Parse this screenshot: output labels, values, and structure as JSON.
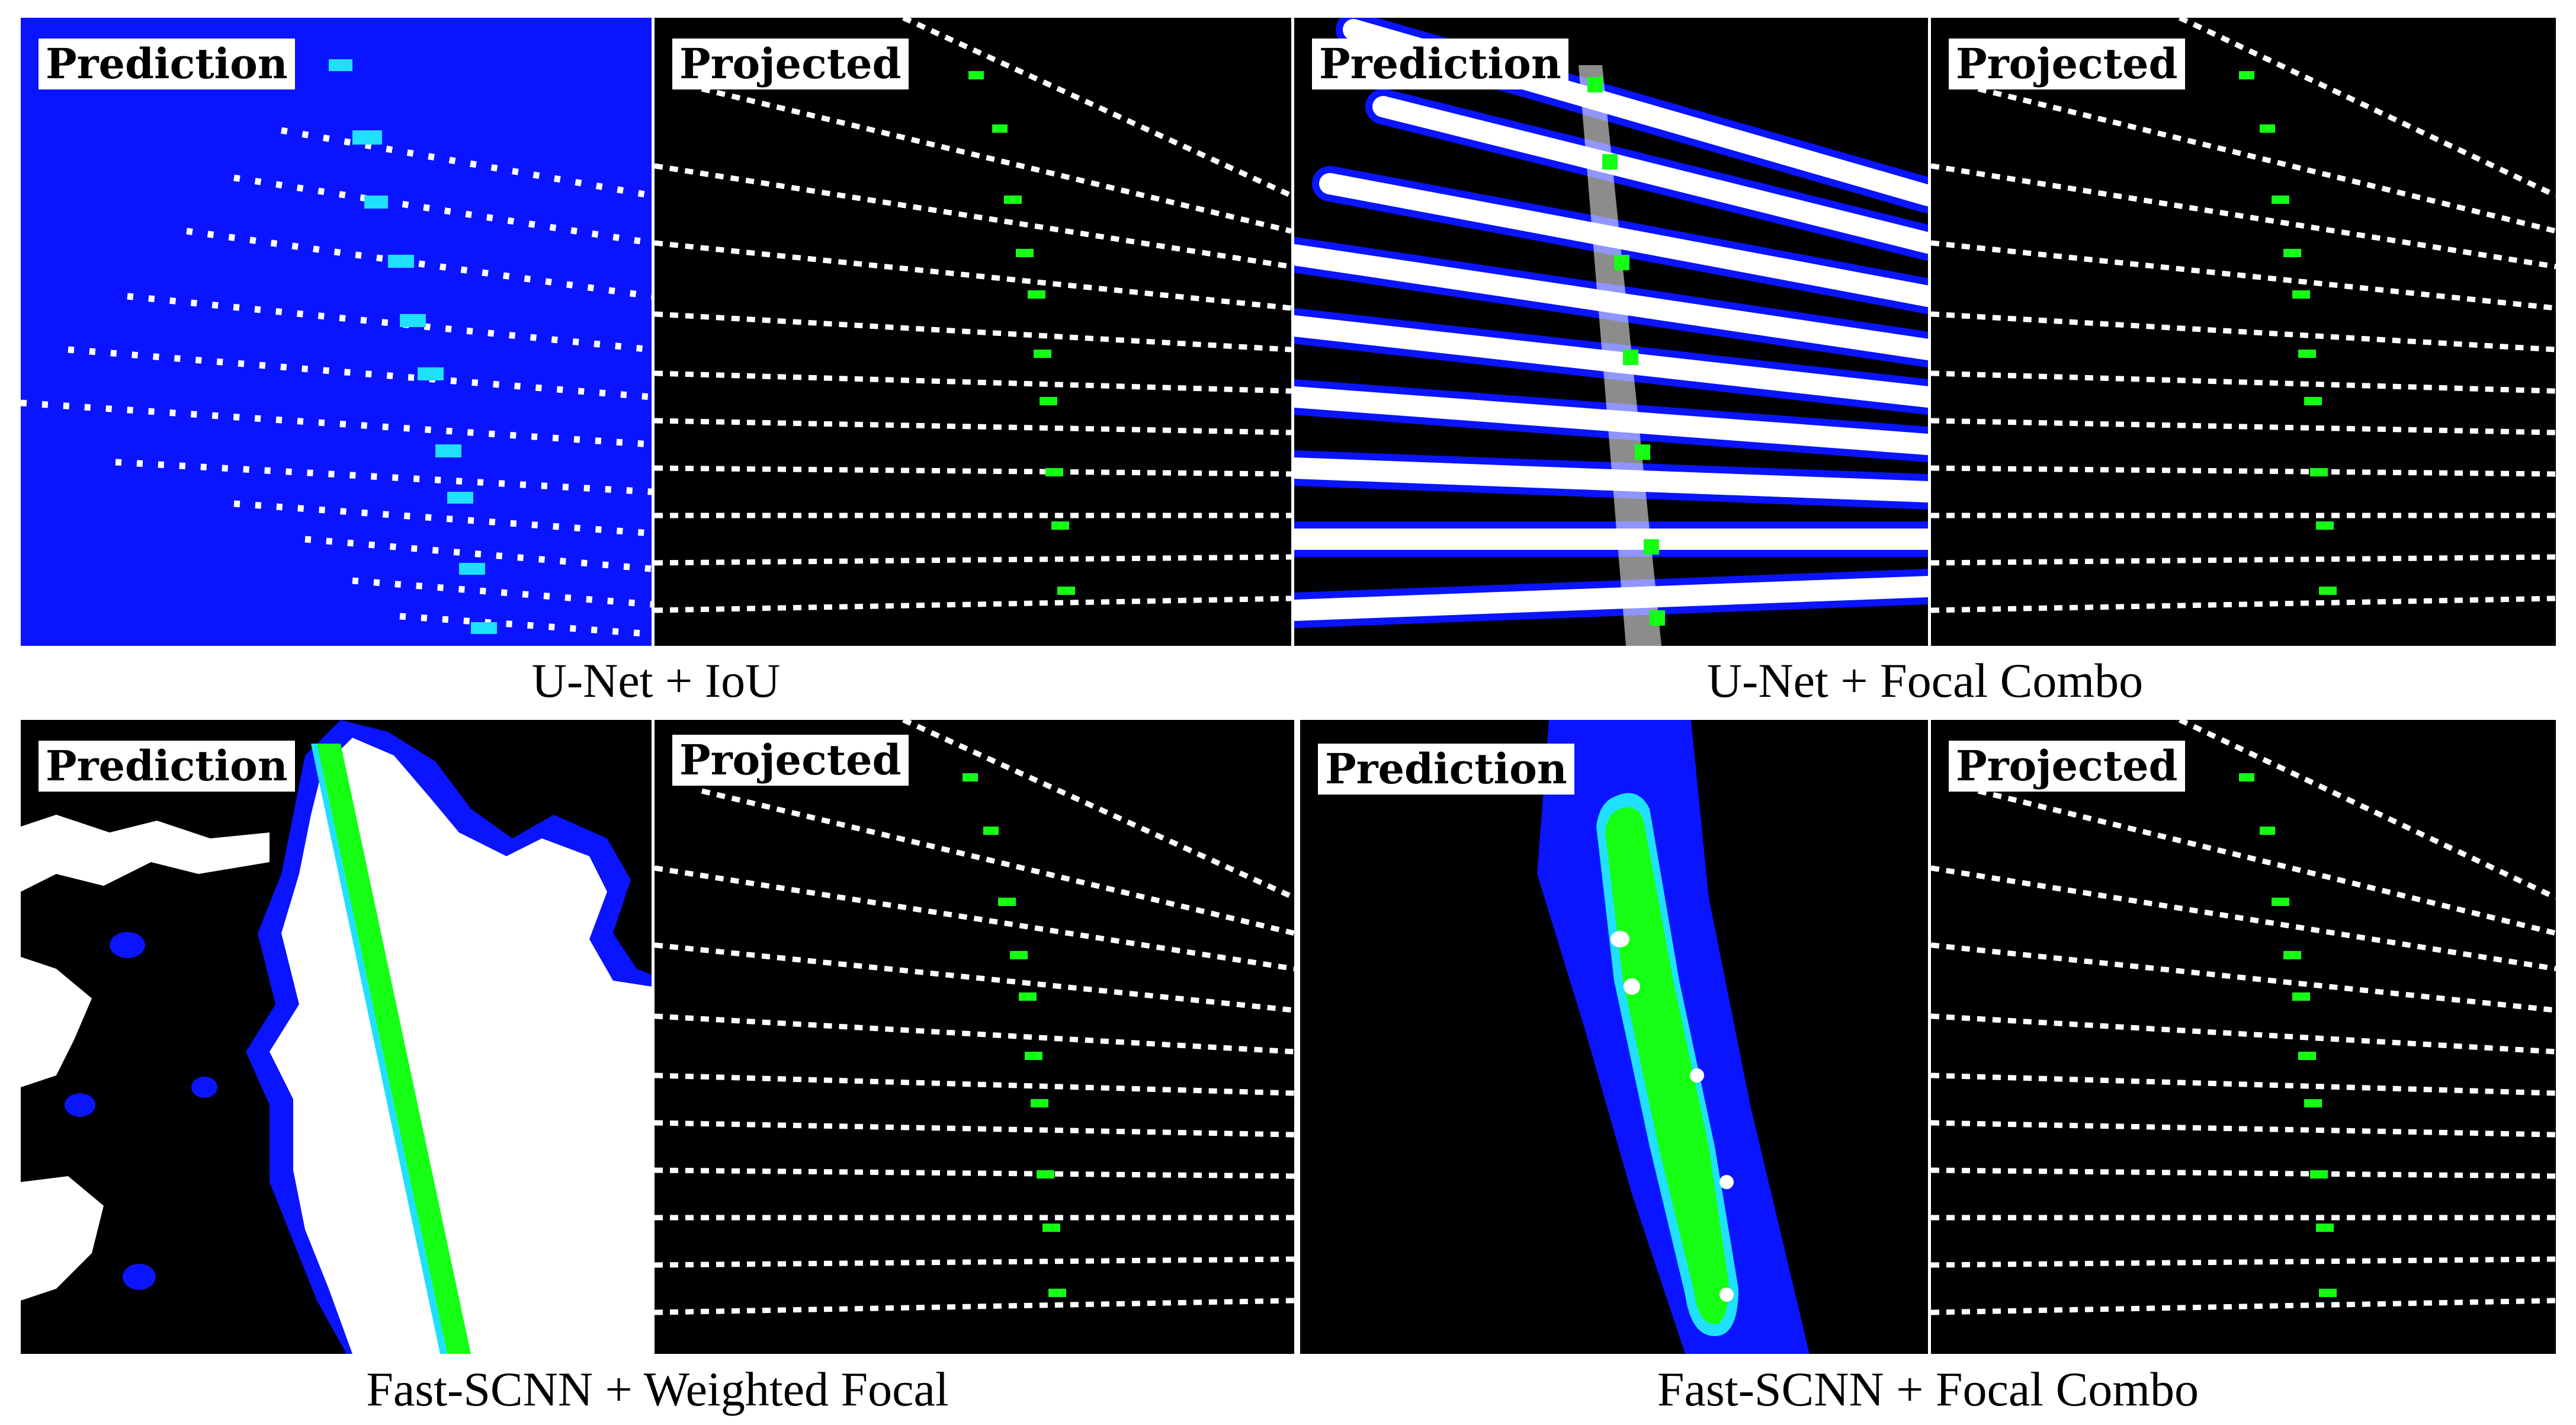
{
  "colors": {
    "background": "#000000",
    "prediction_blue": "#0a14ff",
    "lane_green": "#14ff14",
    "cyan": "#20e0ff",
    "white": "#ffffff"
  },
  "groups": [
    {
      "id": "unet-iou",
      "caption": "U-Net + IoU",
      "prediction_label": "Prediction",
      "projected_label": "Projected"
    },
    {
      "id": "unet-focal-combo",
      "caption": "U-Net + Focal Combo",
      "prediction_label": "Prediction",
      "projected_label": "Projected"
    },
    {
      "id": "fastscnn-weighted-focal",
      "caption": "Fast-SCNN + Weighted Focal",
      "prediction_label": "Prediction",
      "projected_label": "Projected"
    },
    {
      "id": "fastscnn-focal-combo",
      "caption": "Fast-SCNN + Focal Combo",
      "prediction_label": "Prediction",
      "projected_label": "Projected"
    }
  ]
}
